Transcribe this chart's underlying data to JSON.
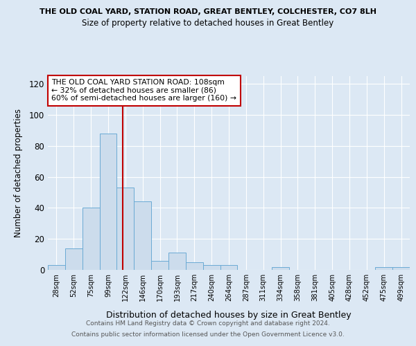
{
  "title1": "THE OLD COAL YARD, STATION ROAD, GREAT BENTLEY, COLCHESTER, CO7 8LH",
  "title2": "Size of property relative to detached houses in Great Bentley",
  "xlabel": "Distribution of detached houses by size in Great Bentley",
  "ylabel": "Number of detached properties",
  "footnote1": "Contains HM Land Registry data © Crown copyright and database right 2024.",
  "footnote2": "Contains public sector information licensed under the Open Government Licence v3.0.",
  "annotation_line1": "THE OLD COAL YARD STATION ROAD: 108sqm",
  "annotation_line2": "← 32% of detached houses are smaller (86)",
  "annotation_line3": "60% of semi-detached houses are larger (160) →",
  "bar_labels": [
    "28sqm",
    "52sqm",
    "75sqm",
    "99sqm",
    "122sqm",
    "146sqm",
    "170sqm",
    "193sqm",
    "217sqm",
    "240sqm",
    "264sqm",
    "287sqm",
    "311sqm",
    "334sqm",
    "358sqm",
    "381sqm",
    "405sqm",
    "428sqm",
    "452sqm",
    "475sqm",
    "499sqm"
  ],
  "bar_values": [
    3,
    14,
    40,
    88,
    53,
    44,
    6,
    11,
    5,
    3,
    3,
    0,
    0,
    2,
    0,
    0,
    0,
    0,
    0,
    2,
    2
  ],
  "bar_width": 1.0,
  "bar_color": "#ccdcec",
  "bar_edgecolor": "#6aaad4",
  "vline_x": 3.85,
  "vline_color": "#c00000",
  "ylim": [
    0,
    125
  ],
  "yticks": [
    0,
    20,
    40,
    60,
    80,
    100,
    120
  ],
  "bg_color": "#dce8f4",
  "plot_bg_color": "#dce8f4",
  "annotation_box_color": "white",
  "annotation_box_edgecolor": "#c00000",
  "grid_color": "#ffffff"
}
